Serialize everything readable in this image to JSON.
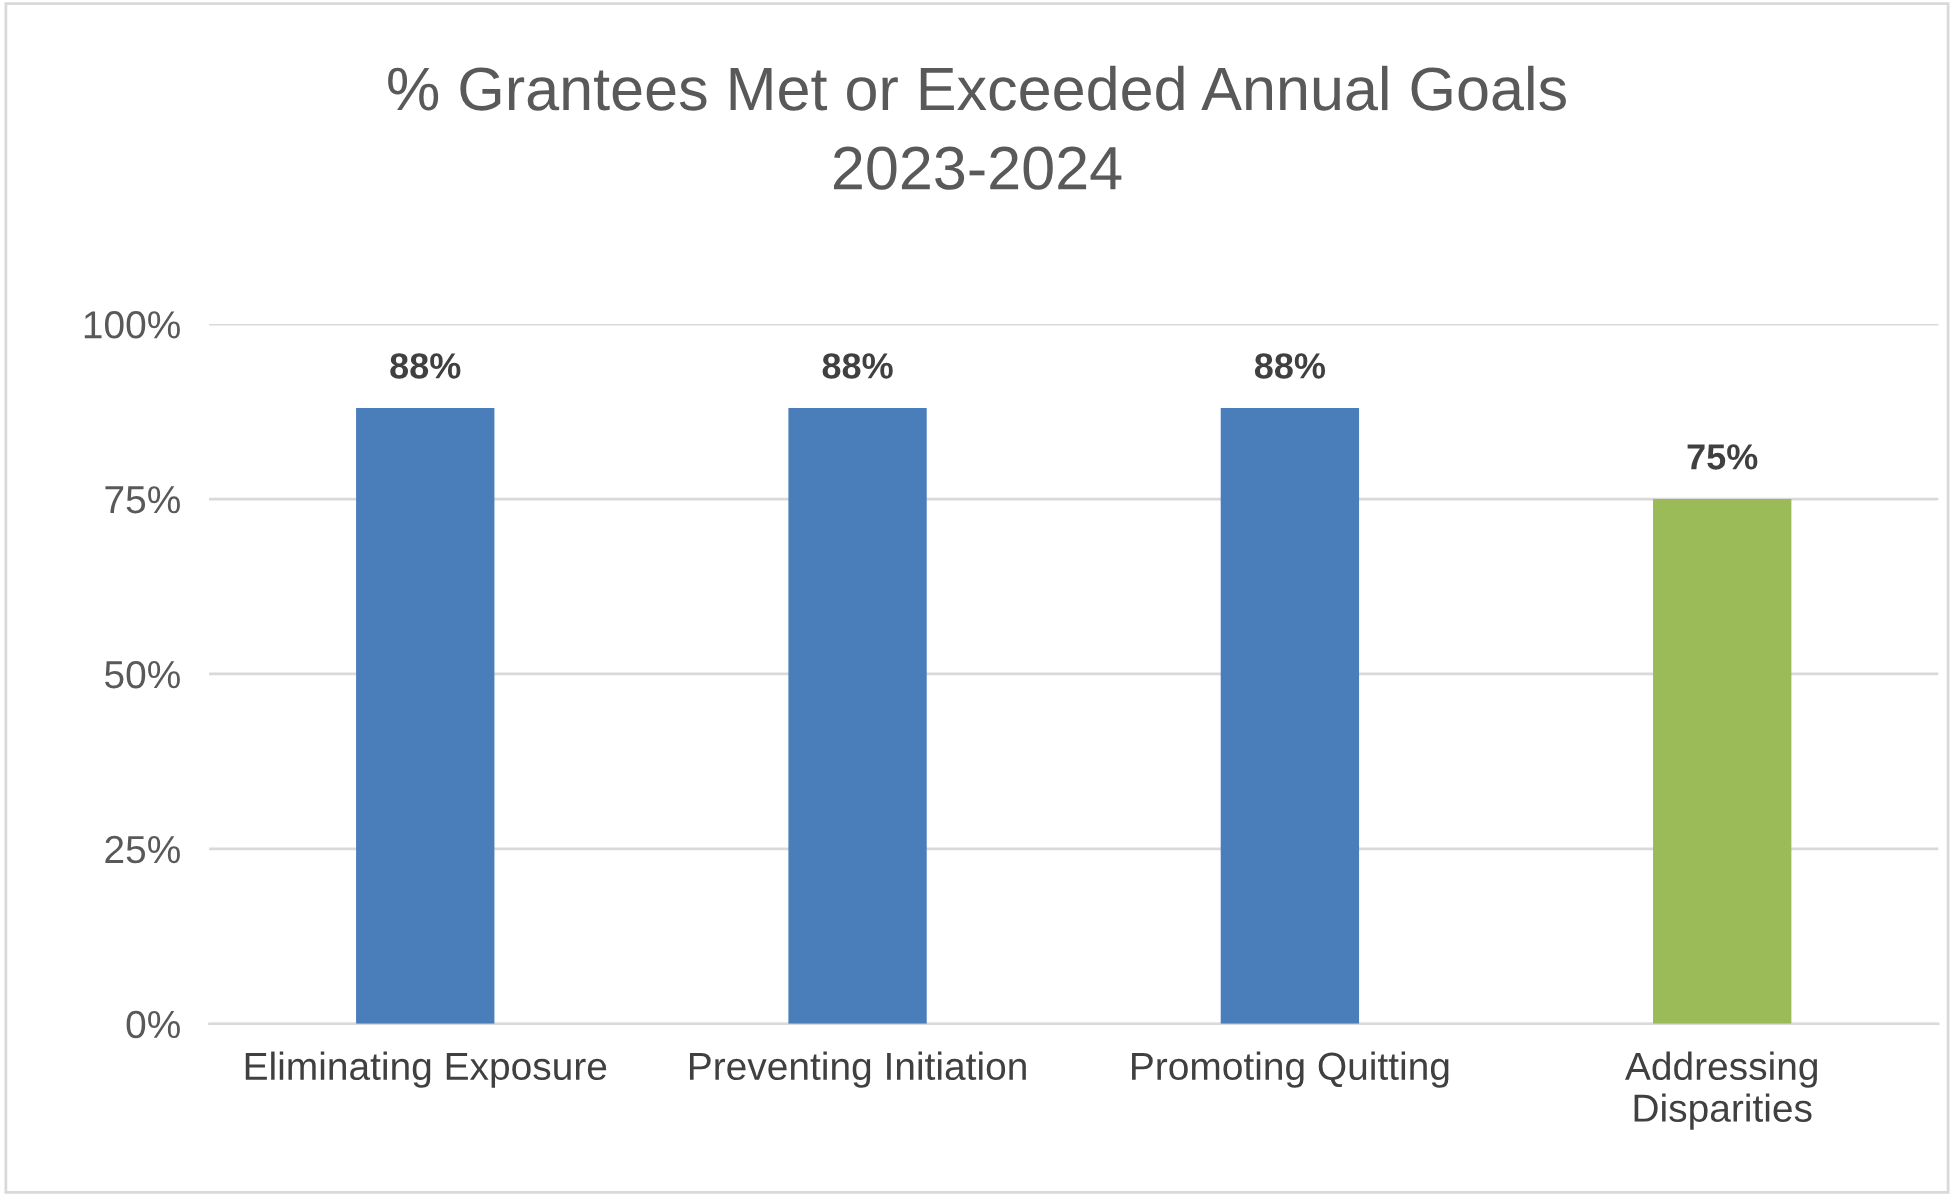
{
  "chart_data": {
    "type": "bar",
    "title": "% Grantees Met or Exceeded Annual Goals\n2023-2024",
    "categories": [
      "Eliminating Exposure",
      "Preventing Initiation",
      "Promoting Quitting",
      "Addressing\nDisparities"
    ],
    "values": [
      88,
      88,
      88,
      75
    ],
    "colors": [
      "#4a7ebb",
      "#4a7ebb",
      "#4a7ebb",
      "#9bbb59"
    ],
    "value_labels": [
      "88%",
      "88%",
      "88%",
      "75%"
    ],
    "ylim": [
      0,
      100
    ],
    "yticks": [
      {
        "value": 0,
        "label": "0%"
      },
      {
        "value": 25,
        "label": "25%"
      },
      {
        "value": 50,
        "label": "50%"
      },
      {
        "value": 75,
        "label": "75%"
      },
      {
        "value": 100,
        "label": "100%"
      }
    ],
    "grid": "y"
  }
}
